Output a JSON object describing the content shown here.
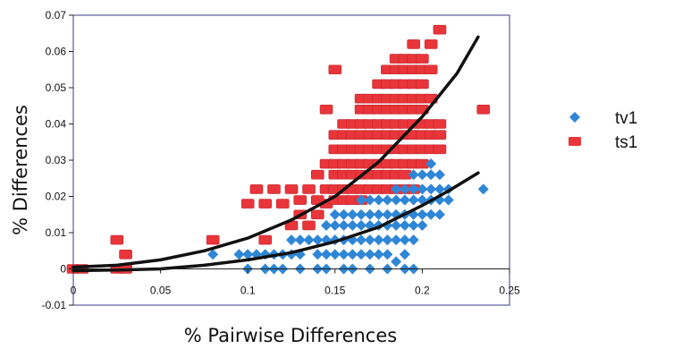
{
  "chart_data": {
    "type": "scatter",
    "title": "",
    "xlabel": "% Pairwise Differences",
    "ylabel": "% Differences",
    "xlim": [
      0,
      0.25
    ],
    "ylim": [
      -0.01,
      0.07
    ],
    "x_ticks": [
      "0",
      "0.05",
      "0.1",
      "0.15",
      "0.2",
      "0.25"
    ],
    "y_ticks": [
      "-0.01",
      "0",
      "0.01",
      "0.02",
      "0.03",
      "0.04",
      "0.05",
      "0.06",
      "0.07"
    ],
    "grid": false,
    "legend_position": "right",
    "series": [
      {
        "name": "tv1",
        "marker": "diamond",
        "color": "#2f86d6",
        "points": [
          [
            0.08,
            0.004
          ],
          [
            0.095,
            0.004
          ],
          [
            0.1,
            0.004
          ],
          [
            0.105,
            0.004
          ],
          [
            0.11,
            0.004
          ],
          [
            0.115,
            0.004
          ],
          [
            0.12,
            0.004
          ],
          [
            0.125,
            0.004
          ],
          [
            0.13,
            0.004
          ],
          [
            0.1,
            0.0
          ],
          [
            0.11,
            0.0
          ],
          [
            0.115,
            0.0
          ],
          [
            0.12,
            0.0
          ],
          [
            0.13,
            0.0
          ],
          [
            0.14,
            0.0
          ],
          [
            0.145,
            0.0
          ],
          [
            0.155,
            0.0
          ],
          [
            0.16,
            0.0
          ],
          [
            0.17,
            0.0
          ],
          [
            0.18,
            0.0
          ],
          [
            0.19,
            0.0
          ],
          [
            0.125,
            0.008
          ],
          [
            0.13,
            0.008
          ],
          [
            0.135,
            0.008
          ],
          [
            0.14,
            0.008
          ],
          [
            0.145,
            0.008
          ],
          [
            0.15,
            0.008
          ],
          [
            0.14,
            0.004
          ],
          [
            0.145,
            0.004
          ],
          [
            0.15,
            0.004
          ],
          [
            0.155,
            0.004
          ],
          [
            0.16,
            0.004
          ],
          [
            0.165,
            0.004
          ],
          [
            0.17,
            0.004
          ],
          [
            0.175,
            0.004
          ],
          [
            0.18,
            0.004
          ],
          [
            0.19,
            0.004
          ],
          [
            0.155,
            0.008
          ],
          [
            0.16,
            0.008
          ],
          [
            0.165,
            0.008
          ],
          [
            0.17,
            0.008
          ],
          [
            0.175,
            0.008
          ],
          [
            0.18,
            0.008
          ],
          [
            0.185,
            0.008
          ],
          [
            0.19,
            0.008
          ],
          [
            0.195,
            0.008
          ],
          [
            0.145,
            0.012
          ],
          [
            0.15,
            0.012
          ],
          [
            0.155,
            0.012
          ],
          [
            0.16,
            0.012
          ],
          [
            0.165,
            0.012
          ],
          [
            0.17,
            0.012
          ],
          [
            0.175,
            0.012
          ],
          [
            0.18,
            0.012
          ],
          [
            0.185,
            0.012
          ],
          [
            0.19,
            0.012
          ],
          [
            0.195,
            0.012
          ],
          [
            0.2,
            0.012
          ],
          [
            0.15,
            0.015
          ],
          [
            0.155,
            0.015
          ],
          [
            0.16,
            0.015
          ],
          [
            0.165,
            0.015
          ],
          [
            0.17,
            0.015
          ],
          [
            0.175,
            0.015
          ],
          [
            0.18,
            0.015
          ],
          [
            0.185,
            0.015
          ],
          [
            0.19,
            0.015
          ],
          [
            0.195,
            0.015
          ],
          [
            0.2,
            0.015
          ],
          [
            0.205,
            0.015
          ],
          [
            0.21,
            0.015
          ],
          [
            0.165,
            0.019
          ],
          [
            0.17,
            0.019
          ],
          [
            0.175,
            0.019
          ],
          [
            0.18,
            0.019
          ],
          [
            0.185,
            0.019
          ],
          [
            0.19,
            0.019
          ],
          [
            0.195,
            0.019
          ],
          [
            0.2,
            0.019
          ],
          [
            0.205,
            0.019
          ],
          [
            0.21,
            0.019
          ],
          [
            0.215,
            0.019
          ],
          [
            0.185,
            0.022
          ],
          [
            0.19,
            0.022
          ],
          [
            0.195,
            0.022
          ],
          [
            0.2,
            0.022
          ],
          [
            0.205,
            0.022
          ],
          [
            0.21,
            0.022
          ],
          [
            0.215,
            0.022
          ],
          [
            0.195,
            0.026
          ],
          [
            0.2,
            0.026
          ],
          [
            0.205,
            0.026
          ],
          [
            0.21,
            0.026
          ],
          [
            0.205,
            0.029
          ],
          [
            0.185,
            0.002
          ],
          [
            0.195,
            0.0
          ],
          [
            0.235,
            0.022
          ]
        ]
      },
      {
        "name": "ts1",
        "marker": "square",
        "color": "#e8353a",
        "points": [
          [
            0.0,
            0.0
          ],
          [
            0.005,
            0.0
          ],
          [
            0.025,
            0.0
          ],
          [
            0.03,
            0.0
          ],
          [
            0.025,
            0.008
          ],
          [
            0.03,
            0.004
          ],
          [
            0.08,
            0.008
          ],
          [
            0.1,
            0.018
          ],
          [
            0.105,
            0.022
          ],
          [
            0.11,
            0.018
          ],
          [
            0.115,
            0.022
          ],
          [
            0.12,
            0.018
          ],
          [
            0.125,
            0.022
          ],
          [
            0.11,
            0.008
          ],
          [
            0.125,
            0.012
          ],
          [
            0.13,
            0.015
          ],
          [
            0.135,
            0.012
          ],
          [
            0.14,
            0.015
          ],
          [
            0.145,
            0.018
          ],
          [
            0.13,
            0.019
          ],
          [
            0.135,
            0.022
          ],
          [
            0.14,
            0.019
          ],
          [
            0.145,
            0.022
          ],
          [
            0.14,
            0.026
          ],
          [
            0.145,
            0.029
          ],
          [
            0.15,
            0.019
          ],
          [
            0.155,
            0.019
          ],
          [
            0.16,
            0.019
          ],
          [
            0.165,
            0.019
          ],
          [
            0.15,
            0.022
          ],
          [
            0.155,
            0.022
          ],
          [
            0.16,
            0.022
          ],
          [
            0.165,
            0.022
          ],
          [
            0.17,
            0.022
          ],
          [
            0.175,
            0.022
          ],
          [
            0.18,
            0.022
          ],
          [
            0.185,
            0.022
          ],
          [
            0.19,
            0.022
          ],
          [
            0.195,
            0.022
          ],
          [
            0.15,
            0.026
          ],
          [
            0.155,
            0.026
          ],
          [
            0.16,
            0.026
          ],
          [
            0.165,
            0.026
          ],
          [
            0.17,
            0.026
          ],
          [
            0.175,
            0.026
          ],
          [
            0.18,
            0.026
          ],
          [
            0.185,
            0.026
          ],
          [
            0.19,
            0.026
          ],
          [
            0.15,
            0.029
          ],
          [
            0.155,
            0.029
          ],
          [
            0.16,
            0.029
          ],
          [
            0.165,
            0.029
          ],
          [
            0.17,
            0.029
          ],
          [
            0.175,
            0.029
          ],
          [
            0.18,
            0.029
          ],
          [
            0.185,
            0.029
          ],
          [
            0.19,
            0.029
          ],
          [
            0.195,
            0.029
          ],
          [
            0.2,
            0.029
          ],
          [
            0.15,
            0.033
          ],
          [
            0.155,
            0.033
          ],
          [
            0.16,
            0.033
          ],
          [
            0.165,
            0.033
          ],
          [
            0.17,
            0.033
          ],
          [
            0.175,
            0.033
          ],
          [
            0.18,
            0.033
          ],
          [
            0.185,
            0.033
          ],
          [
            0.19,
            0.033
          ],
          [
            0.195,
            0.033
          ],
          [
            0.2,
            0.033
          ],
          [
            0.205,
            0.033
          ],
          [
            0.21,
            0.033
          ],
          [
            0.15,
            0.037
          ],
          [
            0.155,
            0.037
          ],
          [
            0.16,
            0.037
          ],
          [
            0.165,
            0.037
          ],
          [
            0.17,
            0.037
          ],
          [
            0.175,
            0.037
          ],
          [
            0.18,
            0.037
          ],
          [
            0.185,
            0.037
          ],
          [
            0.19,
            0.037
          ],
          [
            0.195,
            0.037
          ],
          [
            0.2,
            0.037
          ],
          [
            0.205,
            0.037
          ],
          [
            0.21,
            0.037
          ],
          [
            0.155,
            0.04
          ],
          [
            0.16,
            0.04
          ],
          [
            0.165,
            0.04
          ],
          [
            0.17,
            0.04
          ],
          [
            0.175,
            0.04
          ],
          [
            0.18,
            0.04
          ],
          [
            0.185,
            0.04
          ],
          [
            0.19,
            0.04
          ],
          [
            0.195,
            0.04
          ],
          [
            0.2,
            0.04
          ],
          [
            0.205,
            0.04
          ],
          [
            0.21,
            0.04
          ],
          [
            0.145,
            0.044
          ],
          [
            0.165,
            0.044
          ],
          [
            0.17,
            0.044
          ],
          [
            0.175,
            0.044
          ],
          [
            0.18,
            0.044
          ],
          [
            0.185,
            0.044
          ],
          [
            0.19,
            0.044
          ],
          [
            0.195,
            0.044
          ],
          [
            0.2,
            0.044
          ],
          [
            0.165,
            0.047
          ],
          [
            0.17,
            0.047
          ],
          [
            0.175,
            0.047
          ],
          [
            0.18,
            0.047
          ],
          [
            0.185,
            0.047
          ],
          [
            0.19,
            0.047
          ],
          [
            0.195,
            0.047
          ],
          [
            0.2,
            0.047
          ],
          [
            0.205,
            0.047
          ],
          [
            0.175,
            0.051
          ],
          [
            0.18,
            0.051
          ],
          [
            0.185,
            0.051
          ],
          [
            0.19,
            0.051
          ],
          [
            0.195,
            0.051
          ],
          [
            0.2,
            0.051
          ],
          [
            0.15,
            0.055
          ],
          [
            0.18,
            0.055
          ],
          [
            0.185,
            0.055
          ],
          [
            0.19,
            0.055
          ],
          [
            0.195,
            0.055
          ],
          [
            0.2,
            0.055
          ],
          [
            0.205,
            0.055
          ],
          [
            0.185,
            0.058
          ],
          [
            0.19,
            0.058
          ],
          [
            0.195,
            0.058
          ],
          [
            0.2,
            0.058
          ],
          [
            0.195,
            0.062
          ],
          [
            0.205,
            0.062
          ],
          [
            0.21,
            0.066
          ],
          [
            0.235,
            0.044
          ]
        ]
      }
    ],
    "trendlines": [
      {
        "series": "ts1",
        "points": [
          [
            0,
            0.0005
          ],
          [
            0.025,
            0.001
          ],
          [
            0.05,
            0.0025
          ],
          [
            0.075,
            0.005
          ],
          [
            0.1,
            0.0085
          ],
          [
            0.125,
            0.0135
          ],
          [
            0.15,
            0.02
          ],
          [
            0.175,
            0.0295
          ],
          [
            0.2,
            0.042
          ],
          [
            0.21,
            0.048
          ],
          [
            0.22,
            0.054
          ],
          [
            0.232,
            0.064
          ]
        ]
      },
      {
        "series": "tv1",
        "points": [
          [
            0,
            -0.0005
          ],
          [
            0.025,
            -0.0003
          ],
          [
            0.05,
            0.0
          ],
          [
            0.075,
            0.001
          ],
          [
            0.1,
            0.0025
          ],
          [
            0.125,
            0.0045
          ],
          [
            0.15,
            0.0075
          ],
          [
            0.175,
            0.0115
          ],
          [
            0.2,
            0.0175
          ],
          [
            0.215,
            0.0215
          ],
          [
            0.232,
            0.0265
          ]
        ]
      }
    ]
  }
}
